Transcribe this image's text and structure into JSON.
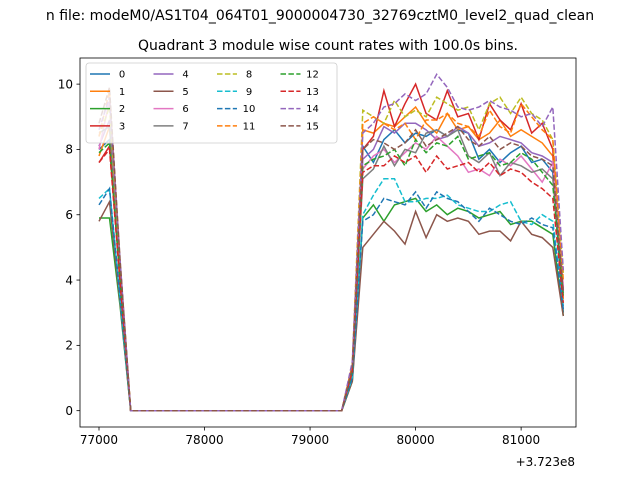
{
  "suptitle": "n file: modeM0/AS1T04_064T01_9000004730_32769cztM0_level2_quad_clean",
  "chart_data": {
    "type": "line",
    "title": "Quadrant 3 module wise count rates with 100.0s bins.",
    "xlabel": "",
    "ylabel": "",
    "offset_text": "+3.723e8",
    "xlim": [
      76820,
      81520
    ],
    "ylim": [
      -0.5,
      10.8
    ],
    "xticks": [
      77000,
      78000,
      79000,
      80000,
      81000
    ],
    "yticks": [
      0,
      2,
      4,
      6,
      8,
      10
    ],
    "legend": {
      "position": "top-left",
      "ncol": 4
    },
    "x": [
      77000,
      77100,
      77200,
      77300,
      77400,
      77500,
      77600,
      77700,
      77800,
      77900,
      78000,
      78100,
      78200,
      78300,
      78400,
      78500,
      78600,
      78700,
      78800,
      78900,
      79000,
      79100,
      79200,
      79300,
      79400,
      79500,
      79600,
      79700,
      79800,
      79900,
      80000,
      80100,
      80200,
      80300,
      80400,
      80500,
      80600,
      80700,
      80800,
      80900,
      81000,
      81100,
      81200,
      81300,
      81400
    ],
    "series": [
      {
        "name": "0",
        "color": "#1f77b4",
        "dash": false,
        "values": [
          8.0,
          8.3,
          4.0,
          0,
          0,
          0,
          0,
          0,
          0,
          0,
          0,
          0,
          0,
          0,
          0,
          0,
          0,
          0,
          0,
          0,
          0,
          0,
          0,
          0,
          1.2,
          8.1,
          7.6,
          8.3,
          8.6,
          8.2,
          8.5,
          8.4,
          8.6,
          8.4,
          8.6,
          8.5,
          7.7,
          8.0,
          7.6,
          7.9,
          8.1,
          7.6,
          7.7,
          7.3,
          3.0
        ]
      },
      {
        "name": "1",
        "color": "#ff7f0e",
        "dash": false,
        "values": [
          7.8,
          8.7,
          4.2,
          0,
          0,
          0,
          0,
          0,
          0,
          0,
          0,
          0,
          0,
          0,
          0,
          0,
          0,
          0,
          0,
          0,
          0,
          0,
          0,
          0,
          1.1,
          8.6,
          8.5,
          8.8,
          8.7,
          9.0,
          9.3,
          8.8,
          8.5,
          9.1,
          8.6,
          8.7,
          8.3,
          8.5,
          8.9,
          8.4,
          8.6,
          8.4,
          8.2,
          7.8,
          3.4
        ]
      },
      {
        "name": "2",
        "color": "#2ca02c",
        "dash": false,
        "values": [
          5.9,
          5.9,
          3.2,
          0,
          0,
          0,
          0,
          0,
          0,
          0,
          0,
          0,
          0,
          0,
          0,
          0,
          0,
          0,
          0,
          0,
          0,
          0,
          0,
          0,
          0.9,
          5.9,
          6.3,
          5.8,
          6.3,
          6.4,
          6.5,
          6.1,
          6.3,
          6.0,
          6.2,
          6.1,
          5.9,
          6.0,
          6.1,
          5.7,
          5.8,
          5.8,
          5.6,
          5.4,
          2.9
        ]
      },
      {
        "name": "3",
        "color": "#d62728",
        "dash": false,
        "values": [
          7.6,
          8.1,
          4.0,
          0,
          0,
          0,
          0,
          0,
          0,
          0,
          0,
          0,
          0,
          0,
          0,
          0,
          0,
          0,
          0,
          0,
          0,
          0,
          0,
          0,
          1.3,
          8.0,
          8.4,
          9.8,
          8.7,
          9.4,
          10.0,
          9.1,
          8.9,
          9.8,
          9.0,
          9.1,
          8.3,
          9.4,
          8.9,
          8.6,
          9.4,
          8.5,
          8.8,
          8.0,
          3.7
        ]
      },
      {
        "name": "4",
        "color": "#9467bd",
        "dash": false,
        "values": [
          8.1,
          8.9,
          4.3,
          0,
          0,
          0,
          0,
          0,
          0,
          0,
          0,
          0,
          0,
          0,
          0,
          0,
          0,
          0,
          0,
          0,
          0,
          0,
          0,
          0,
          1.3,
          7.7,
          8.0,
          8.7,
          8.5,
          8.8,
          8.8,
          8.6,
          8.3,
          8.4,
          8.7,
          8.5,
          8.1,
          8.2,
          8.4,
          8.3,
          8.2,
          7.9,
          7.8,
          7.6,
          3.7
        ]
      },
      {
        "name": "5",
        "color": "#8c564b",
        "dash": false,
        "values": [
          5.8,
          6.4,
          3.3,
          0,
          0,
          0,
          0,
          0,
          0,
          0,
          0,
          0,
          0,
          0,
          0,
          0,
          0,
          0,
          0,
          0,
          0,
          0,
          0,
          0,
          0.9,
          5.0,
          5.4,
          5.8,
          5.5,
          5.1,
          6.1,
          5.3,
          6.0,
          5.8,
          5.9,
          5.8,
          5.4,
          5.5,
          5.5,
          5.2,
          5.8,
          5.4,
          5.3,
          5.0,
          2.9
        ]
      },
      {
        "name": "6",
        "color": "#e377c2",
        "dash": false,
        "values": [
          8.0,
          9.5,
          4.5,
          0,
          0,
          0,
          0,
          0,
          0,
          0,
          0,
          0,
          0,
          0,
          0,
          0,
          0,
          0,
          0,
          0,
          0,
          0,
          0,
          0,
          1.4,
          7.4,
          7.8,
          8.0,
          7.6,
          7.9,
          8.2,
          8.0,
          8.4,
          8.1,
          7.8,
          7.3,
          7.4,
          7.2,
          7.7,
          7.5,
          7.8,
          7.4,
          7.0,
          7.6,
          3.8
        ]
      },
      {
        "name": "7",
        "color": "#7f7f7f",
        "dash": false,
        "values": [
          8.5,
          8.7,
          4.2,
          0,
          0,
          0,
          0,
          0,
          0,
          0,
          0,
          0,
          0,
          0,
          0,
          0,
          0,
          0,
          0,
          0,
          0,
          0,
          0,
          0,
          1.2,
          7.1,
          7.4,
          8.1,
          7.5,
          8.0,
          7.9,
          8.5,
          8.6,
          8.4,
          8.6,
          7.8,
          7.6,
          7.9,
          7.2,
          7.6,
          7.5,
          7.3,
          7.4,
          7.1,
          3.6
        ]
      },
      {
        "name": "8",
        "color": "#bcbd22",
        "dash": true,
        "values": [
          8.4,
          9.3,
          4.5,
          0,
          0,
          0,
          0,
          0,
          0,
          0,
          0,
          0,
          0,
          0,
          0,
          0,
          0,
          0,
          0,
          0,
          0,
          0,
          0,
          0,
          1.4,
          9.2,
          9.0,
          8.8,
          9.5,
          9.0,
          9.2,
          9.0,
          9.6,
          9.4,
          9.2,
          9.3,
          8.6,
          9.4,
          9.6,
          9.1,
          9.6,
          9.1,
          8.9,
          8.3,
          4.2
        ]
      },
      {
        "name": "9",
        "color": "#17becf",
        "dash": true,
        "values": [
          6.5,
          6.8,
          3.4,
          0,
          0,
          0,
          0,
          0,
          0,
          0,
          0,
          0,
          0,
          0,
          0,
          0,
          0,
          0,
          0,
          0,
          0,
          0,
          0,
          0,
          1.0,
          6.0,
          6.6,
          7.1,
          7.1,
          6.4,
          6.4,
          6.5,
          6.5,
          6.6,
          6.3,
          6.2,
          6.1,
          6.1,
          6.3,
          6.4,
          5.8,
          5.7,
          6.0,
          5.8,
          3.2
        ]
      },
      {
        "name": "10",
        "color": "#1f77b4",
        "dash": true,
        "values": [
          6.3,
          6.8,
          3.5,
          0,
          0,
          0,
          0,
          0,
          0,
          0,
          0,
          0,
          0,
          0,
          0,
          0,
          0,
          0,
          0,
          0,
          0,
          0,
          0,
          0,
          1.0,
          5.8,
          6.0,
          6.5,
          6.4,
          6.3,
          6.7,
          6.2,
          6.7,
          6.5,
          6.4,
          6.1,
          5.8,
          6.2,
          6.0,
          5.8,
          5.7,
          5.9,
          5.7,
          5.6,
          3.1
        ]
      },
      {
        "name": "11",
        "color": "#ff7f0e",
        "dash": true,
        "values": [
          8.4,
          9.8,
          4.5,
          0,
          0,
          0,
          0,
          0,
          0,
          0,
          0,
          0,
          0,
          0,
          0,
          0,
          0,
          0,
          0,
          0,
          0,
          0,
          0,
          0,
          1.4,
          8.8,
          9.0,
          8.8,
          8.6,
          8.8,
          8.3,
          8.9,
          8.9,
          9.1,
          8.8,
          8.7,
          8.4,
          9.2,
          8.7,
          8.5,
          9.4,
          9.0,
          8.6,
          8.3,
          4.0
        ]
      },
      {
        "name": "12",
        "color": "#2ca02c",
        "dash": true,
        "values": [
          7.9,
          8.2,
          4.0,
          0,
          0,
          0,
          0,
          0,
          0,
          0,
          0,
          0,
          0,
          0,
          0,
          0,
          0,
          0,
          0,
          0,
          0,
          0,
          0,
          0,
          1.2,
          7.5,
          7.7,
          7.8,
          8.0,
          7.5,
          8.3,
          7.9,
          8.2,
          8.1,
          8.4,
          7.7,
          7.8,
          7.9,
          7.5,
          7.6,
          7.9,
          7.7,
          7.3,
          6.9,
          3.5
        ]
      },
      {
        "name": "13",
        "color": "#d62728",
        "dash": true,
        "values": [
          7.6,
          8.0,
          3.9,
          0,
          0,
          0,
          0,
          0,
          0,
          0,
          0,
          0,
          0,
          0,
          0,
          0,
          0,
          0,
          0,
          0,
          0,
          0,
          0,
          0,
          1.2,
          7.3,
          7.5,
          7.5,
          7.8,
          7.6,
          7.8,
          7.3,
          7.8,
          7.4,
          7.5,
          7.6,
          7.3,
          7.6,
          7.2,
          7.4,
          7.3,
          7.0,
          6.8,
          6.5,
          3.3
        ]
      },
      {
        "name": "14",
        "color": "#9467bd",
        "dash": true,
        "values": [
          8.6,
          9.6,
          4.6,
          0,
          0,
          0,
          0,
          0,
          0,
          0,
          0,
          0,
          0,
          0,
          0,
          0,
          0,
          0,
          0,
          0,
          0,
          0,
          0,
          0,
          1.5,
          8.5,
          8.8,
          9.3,
          9.4,
          9.7,
          9.5,
          9.7,
          10.3,
          9.9,
          9.3,
          9.2,
          9.3,
          9.5,
          9.3,
          9.2,
          9.0,
          9.1,
          8.7,
          9.3,
          4.3
        ]
      },
      {
        "name": "15",
        "color": "#8c564b",
        "dash": true,
        "values": [
          8.8,
          9.9,
          4.6,
          0,
          0,
          0,
          0,
          0,
          0,
          0,
          0,
          0,
          0,
          0,
          0,
          0,
          0,
          0,
          0,
          0,
          0,
          0,
          0,
          0,
          1.3,
          8.0,
          8.3,
          8.2,
          8.0,
          8.2,
          8.6,
          8.1,
          8.3,
          8.5,
          8.7,
          8.3,
          8.1,
          8.4,
          8.0,
          8.2,
          8.1,
          7.8,
          7.7,
          7.5,
          3.6
        ]
      }
    ]
  }
}
